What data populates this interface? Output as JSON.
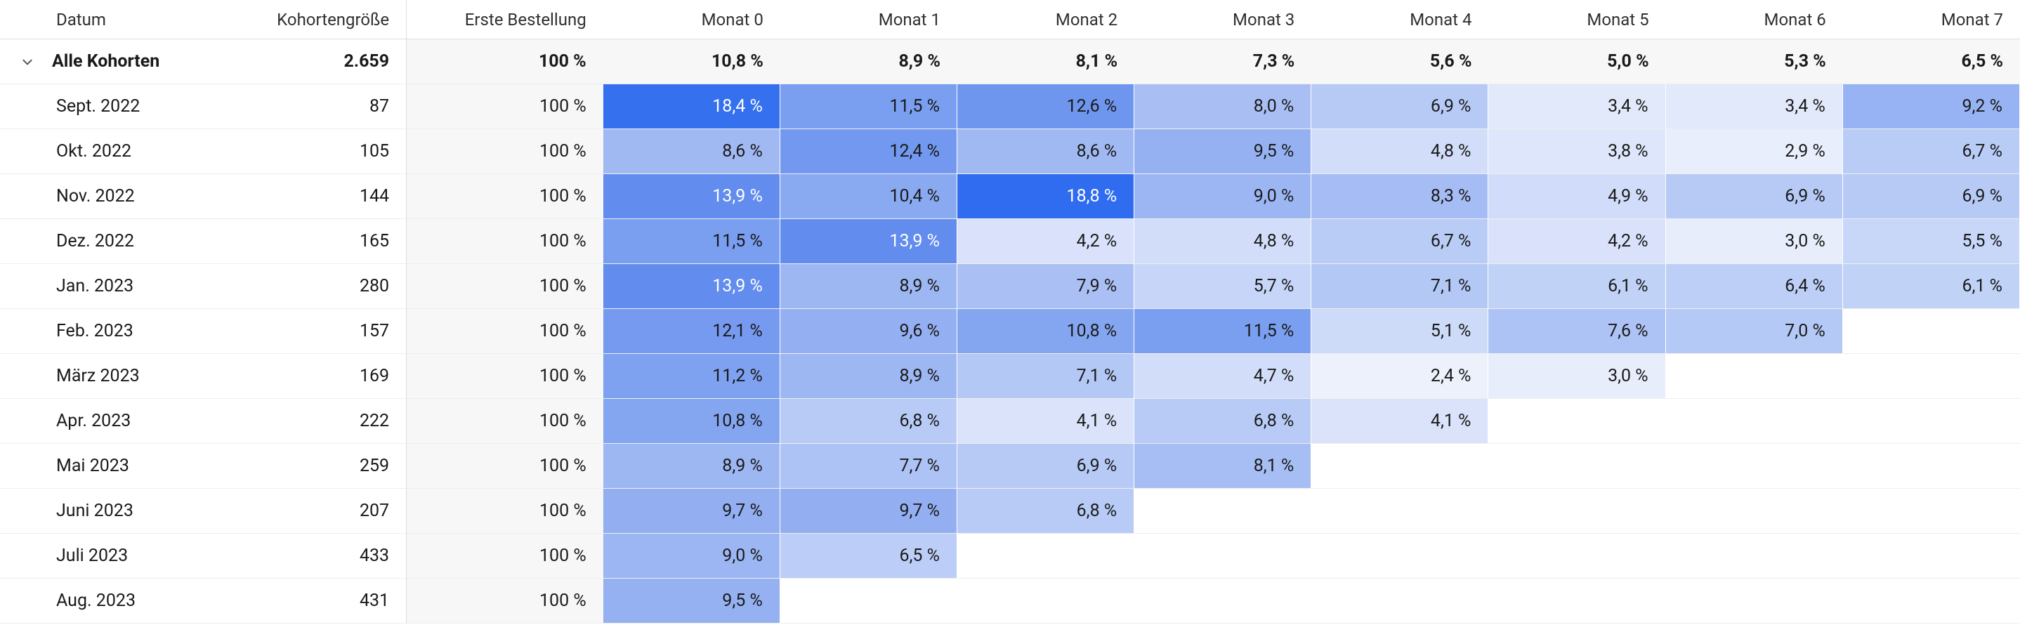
{
  "type": "cohort-heatmap-table",
  "columns": {
    "label": "Datum",
    "size": "Kohortengröße",
    "first": "Erste Bestellung",
    "months": [
      "Monat 0",
      "Monat 1",
      "Monat 2",
      "Monat 3",
      "Monat 4",
      "Monat 5",
      "Monat 6",
      "Monat 7"
    ]
  },
  "summary": {
    "label": "Alle Kohorten",
    "size": "2.659",
    "first": "100 %",
    "months": [
      "10,8 %",
      "8,9 %",
      "8,1 %",
      "7,3 %",
      "5,6 %",
      "5,0 %",
      "5,3 %",
      "6,5 %"
    ]
  },
  "rows": [
    {
      "label": "Sept. 2022",
      "size": "87",
      "first": "100 %",
      "months": [
        {
          "v": "18,4 %",
          "bg": "#3570ef",
          "fg": "#ffffff"
        },
        {
          "v": "11,5 %",
          "bg": "#7a9ef0",
          "fg": "#1a1a1a"
        },
        {
          "v": "12,6 %",
          "bg": "#6f96ef",
          "fg": "#1a1a1a"
        },
        {
          "v": "8,0 %",
          "bg": "#a9bff4",
          "fg": "#1a1a1a"
        },
        {
          "v": "6,9 %",
          "bg": "#b7caf6",
          "fg": "#1a1a1a"
        },
        {
          "v": "3,4 %",
          "bg": "#e2e9fb",
          "fg": "#1a1a1a"
        },
        {
          "v": "3,4 %",
          "bg": "#e2e9fb",
          "fg": "#1a1a1a"
        },
        {
          "v": "9,2 %",
          "bg": "#98b3f3",
          "fg": "#1a1a1a"
        }
      ]
    },
    {
      "label": "Okt. 2022",
      "size": "105",
      "first": "100 %",
      "months": [
        {
          "v": "8,6 %",
          "bg": "#a1b9f3",
          "fg": "#1a1a1a"
        },
        {
          "v": "12,4 %",
          "bg": "#7298ef",
          "fg": "#1a1a1a"
        },
        {
          "v": "8,6 %",
          "bg": "#a1b9f3",
          "fg": "#1a1a1a"
        },
        {
          "v": "9,5 %",
          "bg": "#95b1f2",
          "fg": "#1a1a1a"
        },
        {
          "v": "4,8 %",
          "bg": "#d1ddf9",
          "fg": "#1a1a1a"
        },
        {
          "v": "3,8 %",
          "bg": "#dde6fa",
          "fg": "#1a1a1a"
        },
        {
          "v": "2,9 %",
          "bg": "#e8eefc",
          "fg": "#1a1a1a"
        },
        {
          "v": "6,7 %",
          "bg": "#b9ccf6",
          "fg": "#1a1a1a"
        }
      ]
    },
    {
      "label": "Nov. 2022",
      "size": "144",
      "first": "100 %",
      "months": [
        {
          "v": "13,9 %",
          "bg": "#628cee",
          "fg": "#ffffff"
        },
        {
          "v": "10,4 %",
          "bg": "#89aaf1",
          "fg": "#1a1a1a"
        },
        {
          "v": "18,8 %",
          "bg": "#2f6cef",
          "fg": "#ffffff"
        },
        {
          "v": "9,0 %",
          "bg": "#9cb6f3",
          "fg": "#1a1a1a"
        },
        {
          "v": "8,3 %",
          "bg": "#a5bcf4",
          "fg": "#1a1a1a"
        },
        {
          "v": "4,9 %",
          "bg": "#d0dcf9",
          "fg": "#1a1a1a"
        },
        {
          "v": "6,9 %",
          "bg": "#b7caf6",
          "fg": "#1a1a1a"
        },
        {
          "v": "6,9 %",
          "bg": "#b7caf6",
          "fg": "#1a1a1a"
        }
      ]
    },
    {
      "label": "Dez. 2022",
      "size": "165",
      "first": "100 %",
      "months": [
        {
          "v": "11,5 %",
          "bg": "#7a9ef0",
          "fg": "#1a1a1a"
        },
        {
          "v": "13,9 %",
          "bg": "#628cee",
          "fg": "#ffffff"
        },
        {
          "v": "4,2 %",
          "bg": "#d9e2fa",
          "fg": "#1a1a1a"
        },
        {
          "v": "4,8 %",
          "bg": "#d1ddf9",
          "fg": "#1a1a1a"
        },
        {
          "v": "6,7 %",
          "bg": "#b9ccf6",
          "fg": "#1a1a1a"
        },
        {
          "v": "4,2 %",
          "bg": "#d9e2fa",
          "fg": "#1a1a1a"
        },
        {
          "v": "3,0 %",
          "bg": "#e7edfb",
          "fg": "#1a1a1a"
        },
        {
          "v": "5,5 %",
          "bg": "#c8d6f8",
          "fg": "#1a1a1a"
        }
      ]
    },
    {
      "label": "Jan. 2023",
      "size": "280",
      "first": "100 %",
      "months": [
        {
          "v": "13,9 %",
          "bg": "#628cee",
          "fg": "#ffffff"
        },
        {
          "v": "8,9 %",
          "bg": "#9db7f3",
          "fg": "#1a1a1a"
        },
        {
          "v": "7,9 %",
          "bg": "#aac0f4",
          "fg": "#1a1a1a"
        },
        {
          "v": "5,7 %",
          "bg": "#c6d5f8",
          "fg": "#1a1a1a"
        },
        {
          "v": "7,1 %",
          "bg": "#b4c8f6",
          "fg": "#1a1a1a"
        },
        {
          "v": "6,1 %",
          "bg": "#c1d2f7",
          "fg": "#1a1a1a"
        },
        {
          "v": "6,4 %",
          "bg": "#bdcff7",
          "fg": "#1a1a1a"
        },
        {
          "v": "6,1 %",
          "bg": "#c1d2f7",
          "fg": "#1a1a1a"
        }
      ]
    },
    {
      "label": "Feb. 2023",
      "size": "157",
      "first": "100 %",
      "months": [
        {
          "v": "12,1 %",
          "bg": "#759aef",
          "fg": "#1a1a1a"
        },
        {
          "v": "9,6 %",
          "bg": "#94b0f2",
          "fg": "#1a1a1a"
        },
        {
          "v": "10,8 %",
          "bg": "#84a6f1",
          "fg": "#1a1a1a"
        },
        {
          "v": "11,5 %",
          "bg": "#7a9ef0",
          "fg": "#1a1a1a"
        },
        {
          "v": "5,1 %",
          "bg": "#cddaf8",
          "fg": "#1a1a1a"
        },
        {
          "v": "7,6 %",
          "bg": "#aec3f5",
          "fg": "#1a1a1a"
        },
        {
          "v": "7,0 %",
          "bg": "#b5c9f6",
          "fg": "#1a1a1a"
        }
      ]
    },
    {
      "label": "März 2023",
      "size": "169",
      "first": "100 %",
      "months": [
        {
          "v": "11,2 %",
          "bg": "#7ea1f0",
          "fg": "#1a1a1a"
        },
        {
          "v": "8,9 %",
          "bg": "#9db7f3",
          "fg": "#1a1a1a"
        },
        {
          "v": "7,1 %",
          "bg": "#b4c8f6",
          "fg": "#1a1a1a"
        },
        {
          "v": "4,7 %",
          "bg": "#d2ddf9",
          "fg": "#1a1a1a"
        },
        {
          "v": "2,4 %",
          "bg": "#edf1fc",
          "fg": "#1a1a1a"
        },
        {
          "v": "3,0 %",
          "bg": "#e7edfb",
          "fg": "#1a1a1a"
        }
      ]
    },
    {
      "label": "Apr. 2023",
      "size": "222",
      "first": "100 %",
      "months": [
        {
          "v": "10,8 %",
          "bg": "#84a6f1",
          "fg": "#1a1a1a"
        },
        {
          "v": "6,8 %",
          "bg": "#b8cbf6",
          "fg": "#1a1a1a"
        },
        {
          "v": "4,1 %",
          "bg": "#dae3fa",
          "fg": "#1a1a1a"
        },
        {
          "v": "6,8 %",
          "bg": "#b8cbf6",
          "fg": "#1a1a1a"
        },
        {
          "v": "4,1 %",
          "bg": "#dae3fa",
          "fg": "#1a1a1a"
        }
      ]
    },
    {
      "label": "Mai 2023",
      "size": "259",
      "first": "100 %",
      "months": [
        {
          "v": "8,9 %",
          "bg": "#9db7f3",
          "fg": "#1a1a1a"
        },
        {
          "v": "7,7 %",
          "bg": "#adc2f5",
          "fg": "#1a1a1a"
        },
        {
          "v": "6,9 %",
          "bg": "#b7caf6",
          "fg": "#1a1a1a"
        },
        {
          "v": "8,1 %",
          "bg": "#a7bef4",
          "fg": "#1a1a1a"
        }
      ]
    },
    {
      "label": "Juni 2023",
      "size": "207",
      "first": "100 %",
      "months": [
        {
          "v": "9,7 %",
          "bg": "#93aff2",
          "fg": "#1a1a1a"
        },
        {
          "v": "9,7 %",
          "bg": "#93aff2",
          "fg": "#1a1a1a"
        },
        {
          "v": "6,8 %",
          "bg": "#b8cbf6",
          "fg": "#1a1a1a"
        }
      ]
    },
    {
      "label": "Juli 2023",
      "size": "433",
      "first": "100 %",
      "months": [
        {
          "v": "9,0 %",
          "bg": "#9cb6f3",
          "fg": "#1a1a1a"
        },
        {
          "v": "6,5 %",
          "bg": "#bccef7",
          "fg": "#1a1a1a"
        }
      ]
    },
    {
      "label": "Aug. 2023",
      "size": "431",
      "first": "100 %",
      "months": [
        {
          "v": "9,5 %",
          "bg": "#95b1f2",
          "fg": "#1a1a1a"
        }
      ]
    }
  ],
  "style": {
    "first_col_bg": "#f7f7f7",
    "border_color": "#dcdcdc",
    "row_border": "#eeeeee",
    "summary_font_weight": 700
  }
}
